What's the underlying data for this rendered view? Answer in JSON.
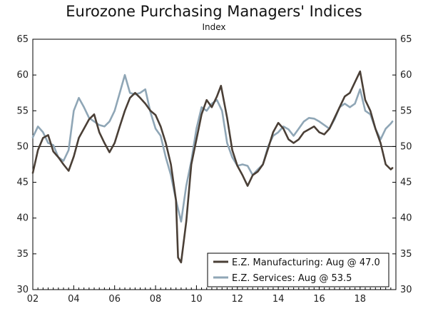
{
  "colors": {
    "manufacturing": "#4a3f36",
    "services": "#8fa6b6",
    "axis": "#000000",
    "legend_border": "#000000"
  },
  "chart_data": {
    "type": "line",
    "title": "Eurozone Purchasing Managers' Indices",
    "subtitle": "Index",
    "xlim": [
      2002.0,
      2019.75
    ],
    "ylim": [
      30,
      65
    ],
    "y_ticks": [
      30,
      35,
      40,
      45,
      50,
      55,
      60,
      65
    ],
    "x_ticks": [
      2002,
      2004,
      2006,
      2008,
      2010,
      2012,
      2014,
      2016,
      2018
    ],
    "x_tick_labels": [
      "02",
      "04",
      "06",
      "08",
      "10",
      "12",
      "14",
      "16",
      "18"
    ],
    "reference_line": 50,
    "legend_position": "bottom-right",
    "legend": [
      "E.Z. Manufacturing: Aug @ 47.0",
      "E.Z. Services: Aug @ 53.5"
    ],
    "series": [
      {
        "name": "E.Z. Manufacturing: Aug @ 47.0",
        "points": [
          [
            2002.0,
            46.3
          ],
          [
            2002.25,
            49.5
          ],
          [
            2002.5,
            51.2
          ],
          [
            2002.75,
            51.6
          ],
          [
            2003.0,
            49.3
          ],
          [
            2003.25,
            48.5
          ],
          [
            2003.5,
            47.5
          ],
          [
            2003.75,
            46.6
          ],
          [
            2004.0,
            48.6
          ],
          [
            2004.25,
            51.2
          ],
          [
            2004.5,
            52.5
          ],
          [
            2004.75,
            53.8
          ],
          [
            2005.0,
            54.5
          ],
          [
            2005.25,
            52.0
          ],
          [
            2005.5,
            50.5
          ],
          [
            2005.75,
            49.2
          ],
          [
            2006.0,
            50.5
          ],
          [
            2006.25,
            52.8
          ],
          [
            2006.5,
            55.0
          ],
          [
            2006.75,
            56.8
          ],
          [
            2007.0,
            57.5
          ],
          [
            2007.25,
            56.8
          ],
          [
            2007.5,
            56.0
          ],
          [
            2007.75,
            55.0
          ],
          [
            2008.0,
            54.4
          ],
          [
            2008.25,
            52.8
          ],
          [
            2008.5,
            50.5
          ],
          [
            2008.75,
            47.5
          ],
          [
            2009.0,
            42.5
          ],
          [
            2009.1,
            34.5
          ],
          [
            2009.25,
            33.8
          ],
          [
            2009.5,
            39.5
          ],
          [
            2009.75,
            47.5
          ],
          [
            2010.0,
            51.0
          ],
          [
            2010.25,
            54.5
          ],
          [
            2010.5,
            56.5
          ],
          [
            2010.75,
            55.5
          ],
          [
            2011.0,
            57.0
          ],
          [
            2011.2,
            58.5
          ],
          [
            2011.5,
            54.0
          ],
          [
            2011.75,
            49.5
          ],
          [
            2012.0,
            47.3
          ],
          [
            2012.25,
            46.0
          ],
          [
            2012.5,
            44.5
          ],
          [
            2012.75,
            46.0
          ],
          [
            2013.0,
            46.5
          ],
          [
            2013.25,
            47.5
          ],
          [
            2013.5,
            49.7
          ],
          [
            2013.75,
            52.0
          ],
          [
            2014.0,
            53.3
          ],
          [
            2014.25,
            52.5
          ],
          [
            2014.5,
            51.0
          ],
          [
            2014.75,
            50.5
          ],
          [
            2015.0,
            51.0
          ],
          [
            2015.25,
            52.0
          ],
          [
            2015.5,
            52.4
          ],
          [
            2015.75,
            52.8
          ],
          [
            2016.0,
            52.0
          ],
          [
            2016.25,
            51.7
          ],
          [
            2016.5,
            52.5
          ],
          [
            2016.75,
            54.0
          ],
          [
            2017.0,
            55.5
          ],
          [
            2017.25,
            57.0
          ],
          [
            2017.5,
            57.5
          ],
          [
            2017.75,
            59.0
          ],
          [
            2018.0,
            60.5
          ],
          [
            2018.25,
            56.5
          ],
          [
            2018.5,
            55.0
          ],
          [
            2018.75,
            52.5
          ],
          [
            2019.0,
            50.5
          ],
          [
            2019.25,
            47.5
          ],
          [
            2019.5,
            46.8
          ],
          [
            2019.58,
            47.0
          ]
        ]
      },
      {
        "name": "E.Z. Services: Aug @ 53.5",
        "points": [
          [
            2002.0,
            51.3
          ],
          [
            2002.25,
            52.8
          ],
          [
            2002.5,
            52.0
          ],
          [
            2002.75,
            50.5
          ],
          [
            2003.0,
            50.2
          ],
          [
            2003.25,
            48.5
          ],
          [
            2003.5,
            48.0
          ],
          [
            2003.75,
            49.5
          ],
          [
            2004.0,
            55.0
          ],
          [
            2004.25,
            56.8
          ],
          [
            2004.5,
            55.5
          ],
          [
            2004.75,
            54.0
          ],
          [
            2005.0,
            53.5
          ],
          [
            2005.25,
            53.0
          ],
          [
            2005.5,
            52.8
          ],
          [
            2005.75,
            53.5
          ],
          [
            2006.0,
            55.0
          ],
          [
            2006.25,
            57.5
          ],
          [
            2006.5,
            60.0
          ],
          [
            2006.75,
            57.5
          ],
          [
            2007.0,
            57.3
          ],
          [
            2007.25,
            57.5
          ],
          [
            2007.5,
            58.0
          ],
          [
            2007.75,
            54.8
          ],
          [
            2008.0,
            52.5
          ],
          [
            2008.25,
            51.5
          ],
          [
            2008.5,
            48.5
          ],
          [
            2008.75,
            46.0
          ],
          [
            2009.0,
            42.5
          ],
          [
            2009.25,
            39.5
          ],
          [
            2009.5,
            44.5
          ],
          [
            2009.75,
            48.0
          ],
          [
            2010.0,
            52.5
          ],
          [
            2010.25,
            55.5
          ],
          [
            2010.5,
            55.0
          ],
          [
            2010.75,
            56.0
          ],
          [
            2011.0,
            56.5
          ],
          [
            2011.25,
            55.0
          ],
          [
            2011.5,
            50.5
          ],
          [
            2011.75,
            48.5
          ],
          [
            2012.0,
            47.3
          ],
          [
            2012.25,
            47.5
          ],
          [
            2012.5,
            47.3
          ],
          [
            2012.75,
            46.0
          ],
          [
            2013.0,
            46.8
          ],
          [
            2013.25,
            47.5
          ],
          [
            2013.5,
            50.0
          ],
          [
            2013.75,
            51.5
          ],
          [
            2014.0,
            52.0
          ],
          [
            2014.25,
            52.8
          ],
          [
            2014.5,
            52.4
          ],
          [
            2014.75,
            51.5
          ],
          [
            2015.0,
            52.5
          ],
          [
            2015.25,
            53.5
          ],
          [
            2015.5,
            54.0
          ],
          [
            2015.75,
            53.9
          ],
          [
            2016.0,
            53.5
          ],
          [
            2016.25,
            53.0
          ],
          [
            2016.5,
            52.5
          ],
          [
            2016.75,
            53.8
          ],
          [
            2017.0,
            55.5
          ],
          [
            2017.25,
            56.0
          ],
          [
            2017.5,
            55.5
          ],
          [
            2017.75,
            56.0
          ],
          [
            2018.0,
            58.0
          ],
          [
            2018.25,
            55.0
          ],
          [
            2018.5,
            54.5
          ],
          [
            2018.75,
            52.5
          ],
          [
            2019.0,
            51.0
          ],
          [
            2019.25,
            52.5
          ],
          [
            2019.5,
            53.2
          ],
          [
            2019.58,
            53.5
          ]
        ]
      }
    ]
  }
}
